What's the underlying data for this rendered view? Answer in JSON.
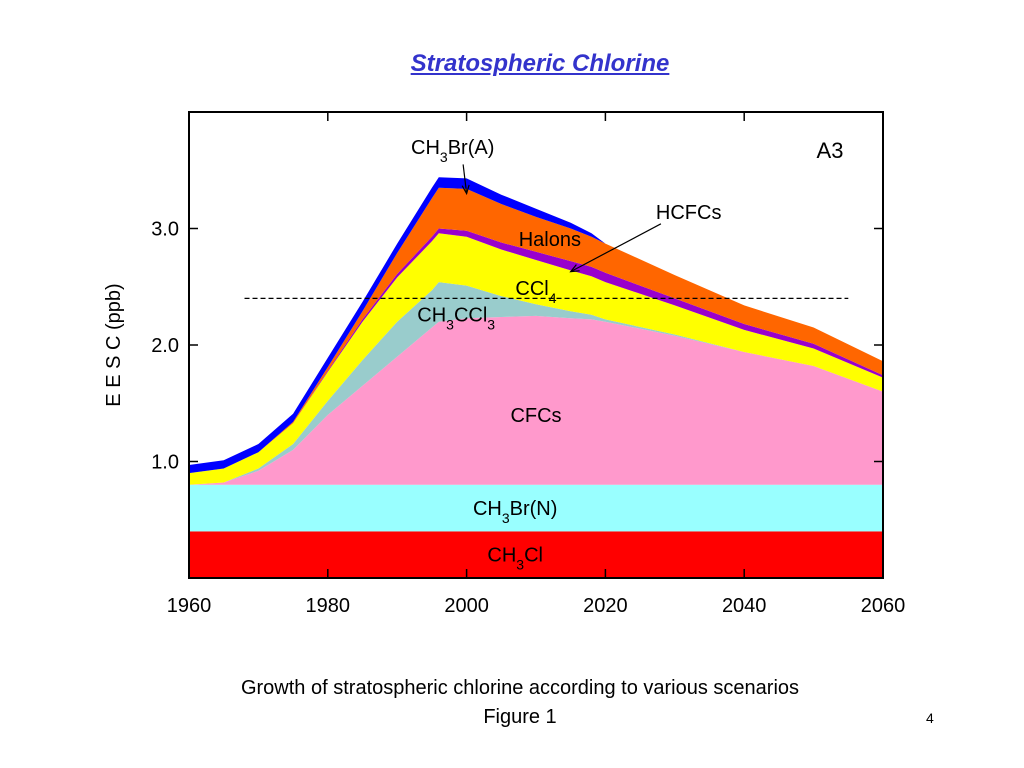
{
  "slide": {
    "title": "Stratospheric Chlorine",
    "caption_line1": "Growth of stratospheric chlorine according to various scenarios",
    "caption_line2": "Figure 1",
    "page_number": "4"
  },
  "chart_data": {
    "type": "area",
    "panel_label": "A3",
    "ylabel": "E E S C  (ppb)",
    "xlim": [
      1960,
      2060
    ],
    "ylim": [
      0.0,
      4.0
    ],
    "x_ticks": [
      1960,
      1980,
      2000,
      2020,
      2040,
      2060
    ],
    "y_ticks": [
      {
        "value": 1.0,
        "label": "1.0"
      },
      {
        "value": 2.0,
        "label": "2.0"
      },
      {
        "value": 3.0,
        "label": "3.0"
      }
    ],
    "reference_line": {
      "y": 2.4,
      "x_range": [
        1968,
        2055
      ],
      "style": "dashed"
    },
    "grid": false,
    "legend": "inline labels",
    "x": [
      1960,
      1965,
      1970,
      1975,
      1980,
      1985,
      1990,
      1995,
      1996,
      2000,
      2005,
      2010,
      2015,
      2018,
      2020,
      2030,
      2040,
      2050,
      2060
    ],
    "series": [
      {
        "name": "CH3Cl",
        "color": "#ff0000",
        "values": [
          0.4,
          0.4,
          0.4,
          0.4,
          0.4,
          0.4,
          0.4,
          0.4,
          0.4,
          0.4,
          0.4,
          0.4,
          0.4,
          0.4,
          0.4,
          0.4,
          0.4,
          0.4,
          0.4
        ]
      },
      {
        "name": "CH3Br(N)",
        "color": "#99ffff",
        "values": [
          0.4,
          0.4,
          0.4,
          0.4,
          0.4,
          0.4,
          0.4,
          0.4,
          0.4,
          0.4,
          0.4,
          0.4,
          0.4,
          0.4,
          0.4,
          0.4,
          0.4,
          0.4,
          0.4
        ]
      },
      {
        "name": "CFCs",
        "color": "#ff99cc",
        "values": [
          0.0,
          0.02,
          0.12,
          0.3,
          0.6,
          0.85,
          1.1,
          1.35,
          1.4,
          1.43,
          1.44,
          1.45,
          1.43,
          1.42,
          1.4,
          1.28,
          1.14,
          1.02,
          0.8
        ]
      },
      {
        "name": "CH3CCl3",
        "color": "#99cccc",
        "values": [
          0.0,
          0.0,
          0.02,
          0.05,
          0.12,
          0.22,
          0.3,
          0.32,
          0.34,
          0.28,
          0.18,
          0.1,
          0.06,
          0.04,
          0.02,
          0.01,
          0.0,
          0.0,
          0.0
        ]
      },
      {
        "name": "CCl4",
        "color": "#ffff00",
        "values": [
          0.1,
          0.12,
          0.14,
          0.18,
          0.25,
          0.33,
          0.38,
          0.42,
          0.42,
          0.42,
          0.4,
          0.38,
          0.35,
          0.33,
          0.32,
          0.25,
          0.19,
          0.15,
          0.12
        ]
      },
      {
        "name": "HCFCs",
        "color": "#9900cc",
        "values": [
          0.0,
          0.0,
          0.0,
          0.0,
          0.01,
          0.02,
          0.03,
          0.04,
          0.04,
          0.05,
          0.06,
          0.07,
          0.08,
          0.08,
          0.08,
          0.06,
          0.05,
          0.04,
          0.02
        ]
      },
      {
        "name": "Halons",
        "color": "#ff6600",
        "values": [
          0.0,
          0.0,
          0.0,
          0.01,
          0.03,
          0.07,
          0.18,
          0.33,
          0.35,
          0.36,
          0.33,
          0.3,
          0.28,
          0.26,
          0.25,
          0.2,
          0.16,
          0.14,
          0.12
        ]
      },
      {
        "name": "CH3Br(A)",
        "color": "#0000ff",
        "values": [
          0.07,
          0.07,
          0.07,
          0.07,
          0.08,
          0.08,
          0.08,
          0.09,
          0.09,
          0.09,
          0.08,
          0.07,
          0.05,
          0.03,
          0.0,
          0.0,
          0.0,
          0.0,
          0.0
        ]
      }
    ],
    "annotations": [
      {
        "label": "CH3Br(A)",
        "target_series": "CH3Br(A)",
        "arrow_to": {
          "x": 2000,
          "y": 3.3
        }
      },
      {
        "label": "HCFCs",
        "target_series": "HCFCs",
        "arrow_to": {
          "x": 2015,
          "y": 2.63
        }
      }
    ]
  },
  "colors": {
    "title": "#3333cc",
    "axis": "#000000",
    "reference_line": "#000000"
  }
}
